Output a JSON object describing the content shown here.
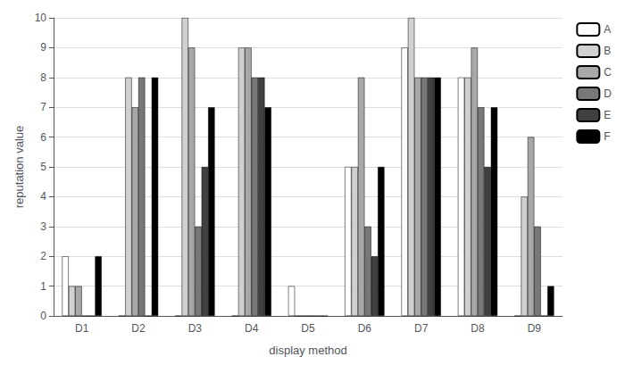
{
  "chart_data": {
    "type": "bar",
    "xlabel": "display method",
    "ylabel": "reputation value",
    "categories": [
      "D1",
      "D2",
      "D3",
      "D4",
      "D5",
      "D6",
      "D7",
      "D8",
      "D9"
    ],
    "series": [
      {
        "name": "A",
        "color": "#ffffff",
        "values": [
          2,
          0,
          0,
          0,
          1,
          5,
          9,
          8,
          0
        ]
      },
      {
        "name": "B",
        "color": "#d0d0d0",
        "values": [
          1,
          8,
          10,
          9,
          0,
          5,
          10,
          8,
          4
        ]
      },
      {
        "name": "C",
        "color": "#a8a8a8",
        "values": [
          1,
          7,
          9,
          9,
          0,
          8,
          8,
          9,
          6
        ]
      },
      {
        "name": "D",
        "color": "#787878",
        "values": [
          0,
          8,
          3,
          8,
          0,
          3,
          8,
          7,
          3
        ]
      },
      {
        "name": "E",
        "color": "#404040",
        "values": [
          0,
          0,
          5,
          8,
          0,
          2,
          8,
          5,
          0
        ]
      },
      {
        "name": "F",
        "color": "#000000",
        "values": [
          2,
          8,
          7,
          7,
          0,
          5,
          8,
          7,
          1
        ]
      }
    ],
    "ylim": [
      0,
      10
    ],
    "yticks": [
      0,
      1,
      2,
      3,
      4,
      5,
      6,
      7,
      8,
      9,
      10
    ],
    "grid": true,
    "legend": "right"
  }
}
